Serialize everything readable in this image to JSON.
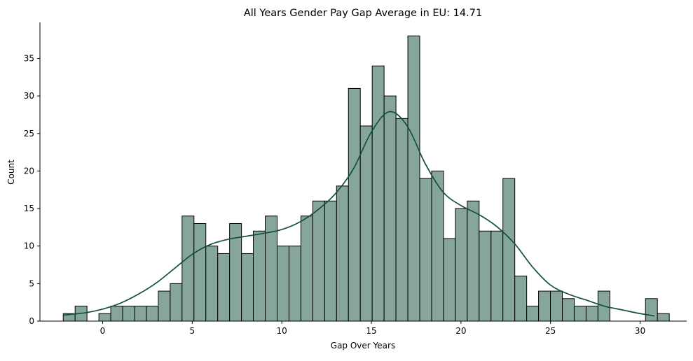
{
  "chart_data": {
    "type": "bar",
    "title": "All Years Gender Pay Gap Average in EU: 14.71",
    "xlabel": "Gap Over Years",
    "ylabel": "Count",
    "xlim": [
      -3.5,
      32.6
    ],
    "ylim": [
      0,
      39.8
    ],
    "xticks": [
      0,
      5,
      10,
      15,
      20,
      25,
      30
    ],
    "yticks": [
      0,
      5,
      10,
      15,
      20,
      25,
      30,
      35
    ],
    "bin_start": -2.2,
    "bin_width": 0.6633,
    "values": [
      1,
      2,
      0,
      1,
      2,
      2,
      2,
      2,
      4,
      5,
      14,
      13,
      10,
      9,
      13,
      9,
      12,
      14,
      10,
      10,
      14,
      16,
      16,
      18,
      31,
      26,
      34,
      30,
      27,
      38,
      19,
      20,
      11,
      15,
      16,
      12,
      12,
      19,
      6,
      2,
      4,
      4,
      3,
      2,
      2,
      4,
      0,
      0,
      0,
      3,
      1
    ],
    "kde": {
      "x": [
        -2.2,
        -1,
        0,
        1,
        2,
        3,
        4,
        5,
        6,
        7,
        8,
        9,
        10,
        11,
        12,
        13,
        14,
        15,
        16,
        17,
        18,
        19,
        20,
        21,
        22,
        23,
        24,
        25,
        26,
        27,
        28,
        29,
        30,
        30.8
      ],
      "y": [
        0.8,
        1.1,
        1.6,
        2.4,
        3.6,
        5.1,
        7.0,
        8.9,
        10.2,
        10.9,
        11.3,
        11.7,
        12.2,
        13.2,
        14.8,
        17.0,
        20.3,
        25.2,
        27.9,
        26.0,
        21.0,
        17.2,
        15.4,
        14.2,
        12.6,
        10.3,
        7.2,
        4.8,
        3.6,
        2.8,
        2.0,
        1.5,
        1.0,
        0.7
      ]
    },
    "bar_fill": "#86a69d",
    "bar_edge": "#000000",
    "kde_color": "#124f3f",
    "grid": false
  }
}
